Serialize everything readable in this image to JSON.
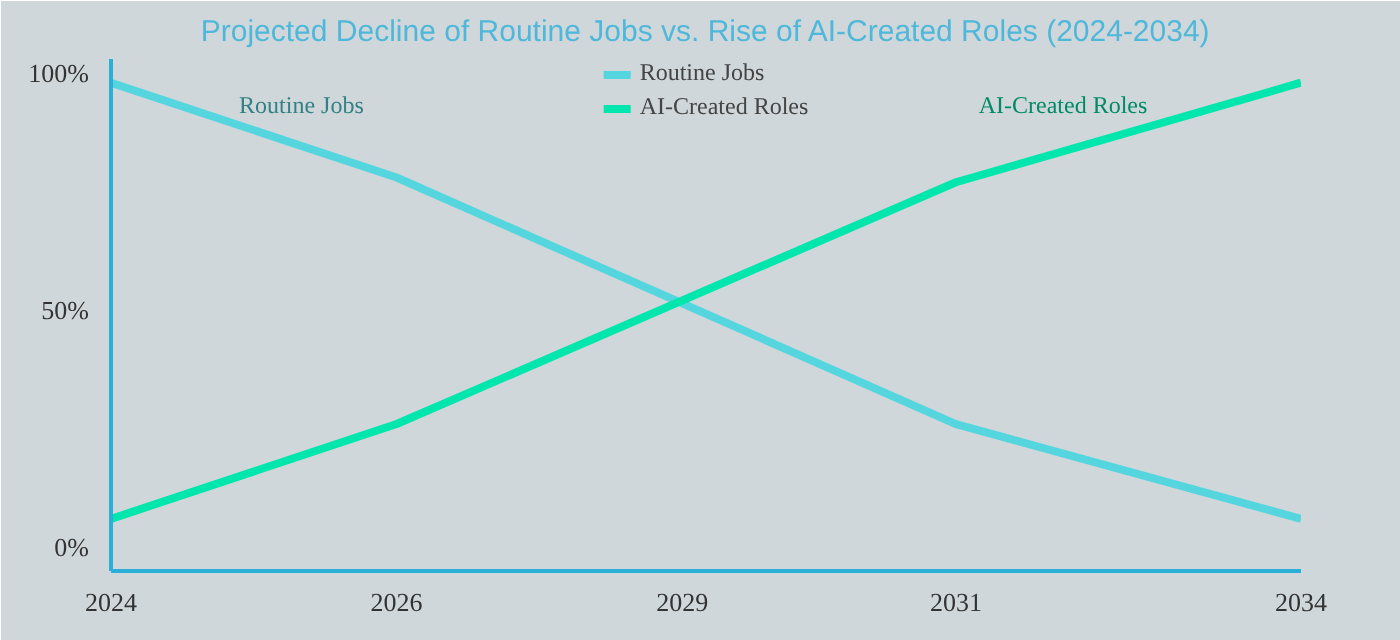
{
  "chart_data": {
    "type": "line",
    "title": "Projected Decline of Routine Jobs vs. Rise of AI-Created Roles (2024-2034)",
    "xlim": [
      2024,
      2034
    ],
    "xticks": [
      2024,
      {
        "value": 2026.4,
        "label": "2026"
      },
      {
        "value": 2028.8,
        "label": "2029"
      },
      {
        "value": 2031.1,
        "label": "2031"
      },
      2034
    ],
    "ylim": [
      -5,
      103
    ],
    "yticks": [
      {
        "value": 0,
        "label": "0%"
      },
      {
        "value": 50,
        "label": "50%"
      },
      {
        "value": 100,
        "label": "100%"
      }
    ],
    "series": [
      {
        "name": "Routine Jobs",
        "color": "#55d6de",
        "x": [
          2024,
          2026.4,
          2031.1,
          2034
        ],
        "values": [
          98,
          78,
          26,
          6
        ]
      },
      {
        "name": "AI-Created Roles",
        "color": "#00e6ad",
        "x": [
          2024,
          2026.4,
          2031.1,
          2034
        ],
        "values": [
          6,
          26,
          77,
          98
        ]
      }
    ],
    "annotations": [
      "Routine Jobs",
      "AI-Created Roles"
    ],
    "grid": false,
    "legend": "top",
    "marker": "none",
    "line_style": "solid"
  }
}
